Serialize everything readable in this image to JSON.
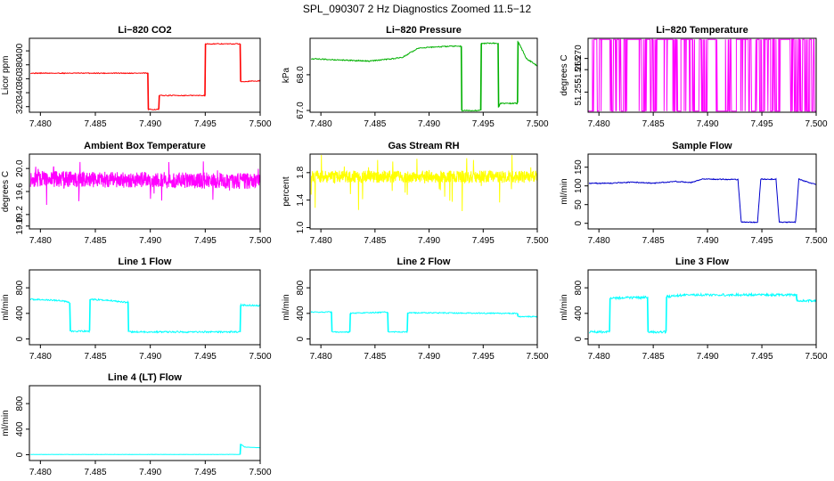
{
  "figure_title": "SPL_090307  2 Hz Diagnostics Zoomed 11.5−12",
  "colors": {
    "red": "#ff0000",
    "green": "#00b000",
    "magenta": "#ff00ff",
    "yellow": "#ffff00",
    "blue": "#0000cc",
    "cyan": "#00ffff"
  },
  "chart_data": [
    {
      "type": "line",
      "title": "Li−820 CO2",
      "ylabel": "Licor ppm",
      "color": "red",
      "xlim": [
        7.479,
        7.5
      ],
      "ylim": [
        312,
        418
      ],
      "xticks": [
        "7.480",
        "7.485",
        "7.490",
        "7.495",
        "7.500"
      ],
      "yticks": [
        "320",
        "340",
        "360",
        "380",
        "400"
      ],
      "noise": 0.6,
      "series": [
        {
          "x": [
            7.4791,
            7.4898,
            7.4898,
            7.4908,
            7.4908,
            7.495,
            7.495,
            7.4982,
            7.4982,
            7.5
          ],
          "values": [
            368,
            368,
            316,
            316,
            336,
            336,
            410,
            410,
            356,
            357
          ]
        }
      ]
    },
    {
      "type": "line",
      "title": "Li−820 Pressure",
      "ylabel": "kPa",
      "color": "green",
      "xlim": [
        7.479,
        7.5
      ],
      "ylim": [
        66.95,
        69.02
      ],
      "xticks": [
        "7.480",
        "7.485",
        "7.490",
        "7.495",
        "7.500"
      ],
      "yticks": [
        "67.0",
        "68.0"
      ],
      "noise": 0.015,
      "series": [
        {
          "x": [
            7.4791,
            7.481,
            7.483,
            7.4845,
            7.486,
            7.4875,
            7.489,
            7.492,
            7.493,
            7.493,
            7.4948,
            7.4948,
            7.4964,
            7.4964,
            7.4966,
            7.4982,
            7.4982,
            7.499,
            7.5
          ],
          "values": [
            68.45,
            68.42,
            68.4,
            68.38,
            68.43,
            68.48,
            68.75,
            68.8,
            68.8,
            67.0,
            67.0,
            68.88,
            68.88,
            67.08,
            67.2,
            67.2,
            68.95,
            68.45,
            68.25
          ]
        }
      ]
    },
    {
      "type": "line",
      "title": "Li−820 Temperature",
      "ylabel": "degrees C",
      "color": "magenta",
      "xlim": [
        7.479,
        7.5
      ],
      "ylim": [
        51.246,
        51.279
      ],
      "xticks": [
        "7.480",
        "7.485",
        "7.490",
        "7.495",
        "7.500"
      ],
      "yticks": [
        "51.255",
        "51.265",
        "51.270"
      ],
      "mode": "binary",
      "low": 51.2465,
      "high": 51.2785,
      "seed": 7,
      "series": []
    },
    {
      "type": "line",
      "title": "Ambient Box Temperature",
      "ylabel": "degrees C",
      "color": "magenta",
      "xlim": [
        7.479,
        7.5
      ],
      "ylim": [
        18.95,
        20.25
      ],
      "xticks": [
        "7.480",
        "7.485",
        "7.490",
        "7.495",
        "7.500"
      ],
      "yticks": [
        "19.0",
        "19.2",
        "19.6",
        "20.0"
      ],
      "mode": "dense",
      "noise": 0.14,
      "spikes": 0.3,
      "seed": 11,
      "series": [
        {
          "x": [
            7.4791,
            7.5
          ],
          "values": [
            19.82,
            19.78
          ]
        }
      ]
    },
    {
      "type": "line",
      "title": "Gas Stream RH",
      "ylabel": "percent",
      "color": "yellow",
      "xlim": [
        7.479,
        7.5
      ],
      "ylim": [
        0.98,
        2.07
      ],
      "xticks": [
        "7.480",
        "7.485",
        "7.490",
        "7.495",
        "7.500"
      ],
      "yticks": [
        "1.0",
        "1.4",
        "1.8"
      ],
      "mode": "dense",
      "noise": 0.09,
      "spikes": 0.5,
      "seed": 23,
      "series": [
        {
          "x": [
            7.4791,
            7.5
          ],
          "values": [
            1.74,
            1.74
          ]
        }
      ]
    },
    {
      "type": "line",
      "title": "Sample Flow",
      "ylabel": "ml/min",
      "color": "blue",
      "xlim": [
        7.479,
        7.5
      ],
      "ylim": [
        -15,
        185
      ],
      "xticks": [
        "7.480",
        "7.485",
        "7.490",
        "7.495",
        "7.500"
      ],
      "yticks": [
        "0",
        "50",
        "100",
        "150"
      ],
      "noise": 1.2,
      "series": [
        {
          "x": [
            7.4791,
            7.481,
            7.483,
            7.485,
            7.487,
            7.4885,
            7.4895,
            7.4905,
            7.4928,
            7.4931,
            7.4946,
            7.4949,
            7.4963,
            7.4966,
            7.4981,
            7.4984,
            7.5
          ],
          "values": [
            107,
            107,
            110,
            107,
            112,
            109,
            118,
            118,
            117,
            3,
            3,
            118,
            118,
            3,
            3,
            118,
            103
          ]
        }
      ]
    },
    {
      "type": "line",
      "title": "Line 1 Flow",
      "ylabel": "ml/min",
      "color": "cyan",
      "xlim": [
        7.479,
        7.5
      ],
      "ylim": [
        -90,
        1080
      ],
      "xticks": [
        "7.480",
        "7.485",
        "7.490",
        "7.495",
        "7.500"
      ],
      "yticks": [
        "0",
        "400",
        "800"
      ],
      "noise": 12,
      "series": [
        {
          "x": [
            7.4791,
            7.482,
            7.4827,
            7.4827,
            7.4845,
            7.4845,
            7.4865,
            7.4875,
            7.488,
            7.488,
            7.4982,
            7.4982,
            7.5
          ],
          "values": [
            620,
            600,
            570,
            120,
            120,
            620,
            600,
            580,
            570,
            110,
            110,
            530,
            520
          ]
        }
      ]
    },
    {
      "type": "line",
      "title": "Line 2 Flow",
      "ylabel": "ml/min",
      "color": "cyan",
      "xlim": [
        7.479,
        7.5
      ],
      "ylim": [
        -90,
        1080
      ],
      "xticks": [
        "7.480",
        "7.485",
        "7.490",
        "7.495",
        "7.500"
      ],
      "yticks": [
        "0",
        "400",
        "800"
      ],
      "noise": 8,
      "series": [
        {
          "x": [
            7.4791,
            7.481,
            7.481,
            7.4827,
            7.4827,
            7.4862,
            7.4862,
            7.488,
            7.488,
            7.4982,
            7.4982,
            7.5
          ],
          "values": [
            420,
            420,
            110,
            110,
            400,
            420,
            110,
            110,
            410,
            400,
            350,
            350
          ]
        }
      ]
    },
    {
      "type": "line",
      "title": "Line 3 Flow",
      "ylabel": "ml/min",
      "color": "cyan",
      "xlim": [
        7.479,
        7.5
      ],
      "ylim": [
        -90,
        1080
      ],
      "xticks": [
        "7.480",
        "7.485",
        "7.490",
        "7.495",
        "7.500"
      ],
      "yticks": [
        "0",
        "400",
        "800"
      ],
      "noise": 18,
      "series": [
        {
          "x": [
            7.4791,
            7.481,
            7.481,
            7.4845,
            7.4845,
            7.4862,
            7.4862,
            7.488,
            7.4982,
            7.4982,
            7.5
          ],
          "values": [
            110,
            110,
            640,
            650,
            110,
            110,
            660,
            690,
            690,
            600,
            600
          ]
        }
      ]
    },
    {
      "type": "line",
      "title": "Line 4 (LT) Flow",
      "ylabel": "ml/min",
      "color": "cyan",
      "xlim": [
        7.479,
        7.5
      ],
      "ylim": [
        -90,
        1080
      ],
      "xticks": [
        "7.480",
        "7.485",
        "7.490",
        "7.495",
        "7.500"
      ],
      "yticks": [
        "0",
        "400",
        "800"
      ],
      "noise": 2,
      "series": [
        {
          "x": [
            7.4791,
            7.4982,
            7.4982,
            7.4986,
            7.5
          ],
          "values": [
            5,
            5,
            170,
            120,
            110
          ]
        }
      ]
    }
  ]
}
